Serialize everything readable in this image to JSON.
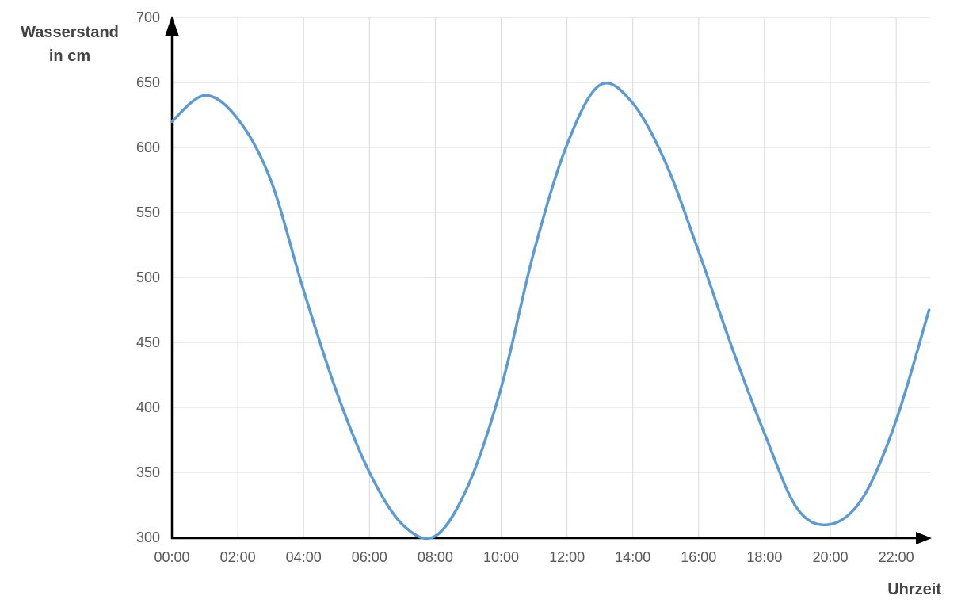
{
  "page": {
    "background": "#FFFFFF"
  },
  "colors": {
    "axis": "#000000",
    "grid": "#D9D9D9",
    "tick_label": "#595959",
    "axis_title": "#444444",
    "line": "#5B9BD5"
  },
  "chart_data": {
    "type": "line",
    "title": "",
    "y_axis_title_lines": [
      "Wasserstand",
      "in cm"
    ],
    "x_axis_title": "Uhrzeit",
    "x_tick_labels": [
      "00:00",
      "02:00",
      "04:00",
      "06:00",
      "08:00",
      "10:00",
      "12:00",
      "14:00",
      "16:00",
      "18:00",
      "20:00",
      "22:00"
    ],
    "x_tick_hours": [
      0,
      2,
      4,
      6,
      8,
      10,
      12,
      14,
      16,
      18,
      20,
      22
    ],
    "y_tick_values": [
      300,
      350,
      400,
      450,
      500,
      550,
      600,
      650,
      700
    ],
    "ylim": [
      300,
      700
    ],
    "xlim_hours": [
      0,
      23
    ],
    "grid": true,
    "legend_position": "none",
    "series": [
      {
        "name": "Wasserstand in cm",
        "color": "#5B9BD5",
        "x_hours": [
          0,
          1,
          2,
          3,
          4,
          5,
          6,
          7,
          8,
          9,
          10,
          11,
          12,
          13,
          14,
          15,
          16,
          17,
          18,
          19,
          20,
          21,
          22,
          23
        ],
        "values": [
          620,
          640,
          622,
          575,
          490,
          412,
          350,
          310,
          301,
          340,
          415,
          520,
          602,
          648,
          634,
          588,
          520,
          447,
          380,
          322,
          310,
          331,
          390,
          475
        ]
      }
    ],
    "extremes": {
      "high_tide_1": {
        "time": "01:00",
        "value": 640
      },
      "low_tide_1": {
        "time": "07:50",
        "value": 300
      },
      "high_tide_2": {
        "time": "13:20",
        "value": 651
      },
      "low_tide_2": {
        "time": "19:45",
        "value": 308
      }
    }
  }
}
